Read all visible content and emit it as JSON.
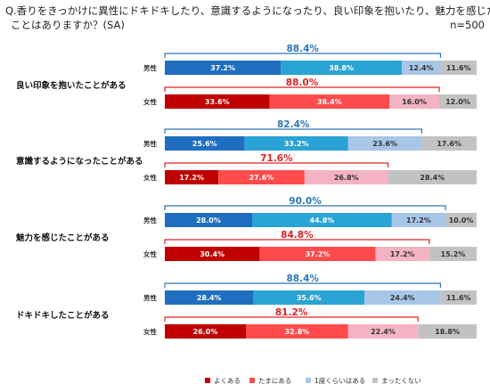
{
  "question": {
    "line1": "Q.香りをきっかけに異性にドキドキしたり、意識するようになったり、良い印象を抱いたり、魅力を感じたりした",
    "line2": "ことはありますか？(SA)"
  },
  "sample": "n=500",
  "colors": {
    "yoku": "#c00000",
    "tamani": "#ff4b4b",
    "ichido": "#a7c6e8",
    "mattaku": "#c2c2c2",
    "male_total": "#2e75b6",
    "female_total": "#e02020",
    "male_yoku": "#1f6ec0",
    "male_tamani": "#2aa3d5",
    "female_ichido": "#f4b3c2"
  },
  "chart_data": {
    "type": "bar",
    "orientation": "horizontal",
    "stacked": true,
    "xlim": [
      0,
      100
    ],
    "unit": "%",
    "legend_position": "bottom",
    "legend": [
      "よくある",
      "たまにある",
      "1度くらいはある",
      "まったくない"
    ],
    "groups": [
      {
        "label": "良い印象を抱いたことがある",
        "rows": [
          {
            "gender": "男性",
            "values": [
              37.2,
              38.8,
              12.4,
              11.6
            ],
            "labels": [
              "37.2%",
              "38.8%",
              "12.4%",
              "11.6%"
            ],
            "total": 88.4,
            "total_label": "88.4%"
          },
          {
            "gender": "女性",
            "values": [
              33.6,
              38.4,
              16.0,
              12.0
            ],
            "labels": [
              "33.6%",
              "38.4%",
              "16.0%",
              "12.0%"
            ],
            "total": 88.0,
            "total_label": "88.0%"
          }
        ]
      },
      {
        "label": "意識するようになったことがある",
        "rows": [
          {
            "gender": "男性",
            "values": [
              25.6,
              33.2,
              23.6,
              17.6
            ],
            "labels": [
              "25.6%",
              "33.2%",
              "23.6%",
              "17.6%"
            ],
            "total": 82.4,
            "total_label": "82.4%"
          },
          {
            "gender": "女性",
            "values": [
              17.2,
              27.6,
              26.8,
              28.4
            ],
            "labels": [
              "17.2%",
              "27.6%",
              "26.8%",
              "28.4%"
            ],
            "total": 71.6,
            "total_label": "71.6%"
          }
        ]
      },
      {
        "label": "魅力を感じたことがある",
        "rows": [
          {
            "gender": "男性",
            "values": [
              28.0,
              44.8,
              17.2,
              10.0
            ],
            "labels": [
              "28.0%",
              "44.8%",
              "17.2%",
              "10.0%"
            ],
            "total": 90.0,
            "total_label": "90.0%"
          },
          {
            "gender": "女性",
            "values": [
              30.4,
              37.2,
              17.2,
              15.2
            ],
            "labels": [
              "30.4%",
              "37.2%",
              "17.2%",
              "15.2%"
            ],
            "total": 84.8,
            "total_label": "84.8%"
          }
        ]
      },
      {
        "label": "ドキドキしたことがある",
        "rows": [
          {
            "gender": "男性",
            "values": [
              28.4,
              35.6,
              24.4,
              11.6
            ],
            "labels": [
              "28.4%",
              "35.6%",
              "24.4%",
              "11.6%"
            ],
            "total": 88.4,
            "total_label": "88.4%"
          },
          {
            "gender": "女性",
            "values": [
              26.0,
              32.8,
              22.4,
              18.8
            ],
            "labels": [
              "26.0%",
              "32.8%",
              "22.4%",
              "18.8%"
            ],
            "total": 81.2,
            "total_label": "81.2%"
          }
        ]
      }
    ]
  }
}
